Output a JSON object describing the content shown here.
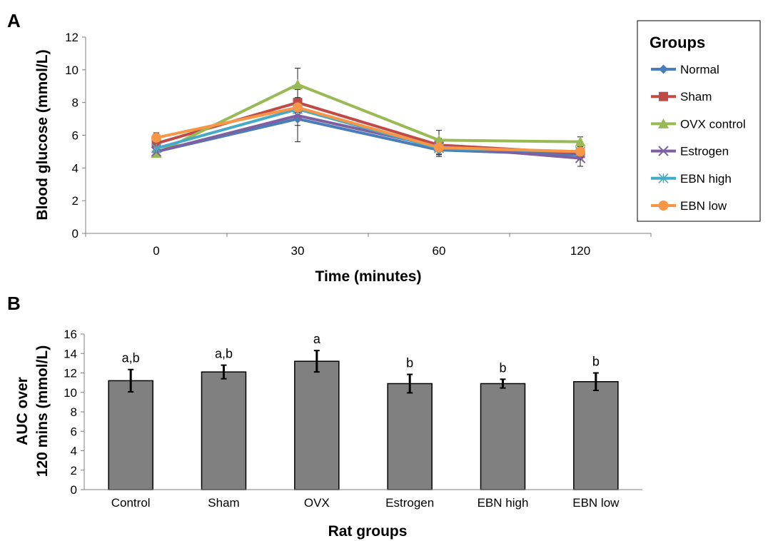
{
  "panels": {
    "a": "A",
    "b": "B"
  },
  "chart_data": [
    {
      "type": "line",
      "xlabel": "Time (minutes)",
      "ylabel": "Blood glucose (mmol/L)",
      "categories": [
        "0",
        "30",
        "60",
        "120"
      ],
      "ylim": [
        0,
        12
      ],
      "yticks": [
        "0",
        "2",
        "4",
        "6",
        "8",
        "10",
        "12"
      ],
      "grid": false,
      "legend": {
        "title": "Groups",
        "position": "right"
      },
      "series": [
        {
          "name": "Normal",
          "color": "#4a7ebb",
          "marker": "diamond",
          "values": [
            5.0,
            7.0,
            5.1,
            4.8
          ],
          "errors": [
            0.3,
            0.4,
            0.4,
            0.3
          ]
        },
        {
          "name": "Sham",
          "color": "#be4b48",
          "marker": "square",
          "values": [
            5.5,
            8.0,
            5.4,
            4.9
          ],
          "errors": [
            0.4,
            0.3,
            0.4,
            0.3
          ]
        },
        {
          "name": "OVX control",
          "color": "#98b954",
          "marker": "triangle",
          "values": [
            4.9,
            9.1,
            5.7,
            5.6
          ],
          "errors": [
            0.2,
            1.0,
            0.6,
            0.3
          ]
        },
        {
          "name": "Estrogen",
          "color": "#7d60a0",
          "marker": "x",
          "values": [
            5.0,
            7.2,
            5.3,
            4.6
          ],
          "errors": [
            0.3,
            1.6,
            0.5,
            0.5
          ]
        },
        {
          "name": "EBN high",
          "color": "#46aac5",
          "marker": "asterisk",
          "values": [
            5.2,
            7.6,
            5.2,
            5.0
          ],
          "errors": [
            0.3,
            0.5,
            0.4,
            0.4
          ]
        },
        {
          "name": "EBN low",
          "color": "#f79646",
          "marker": "circle",
          "values": [
            5.85,
            7.7,
            5.25,
            5.0
          ],
          "errors": [
            0.3,
            0.6,
            0.4,
            0.3
          ]
        }
      ]
    },
    {
      "type": "bar",
      "xlabel": "Rat groups",
      "ylabel": [
        "AUC over",
        "120 mins (mmol/L)"
      ],
      "categories": [
        "Control",
        "Sham",
        "OVX",
        "Estrogen",
        "EBN high",
        "EBN low"
      ],
      "values": [
        11.2,
        12.1,
        13.2,
        10.9,
        10.9,
        11.1
      ],
      "errors": [
        1.15,
        0.7,
        1.1,
        0.95,
        0.45,
        0.9
      ],
      "annotations": [
        "a,b",
        "a,b",
        "a",
        "b",
        "b",
        "b"
      ],
      "ylim": [
        0,
        16
      ],
      "yticks": [
        "0",
        "2",
        "4",
        "6",
        "8",
        "10",
        "12",
        "14",
        "16"
      ],
      "bar_color": "#808080",
      "grid": false
    }
  ]
}
